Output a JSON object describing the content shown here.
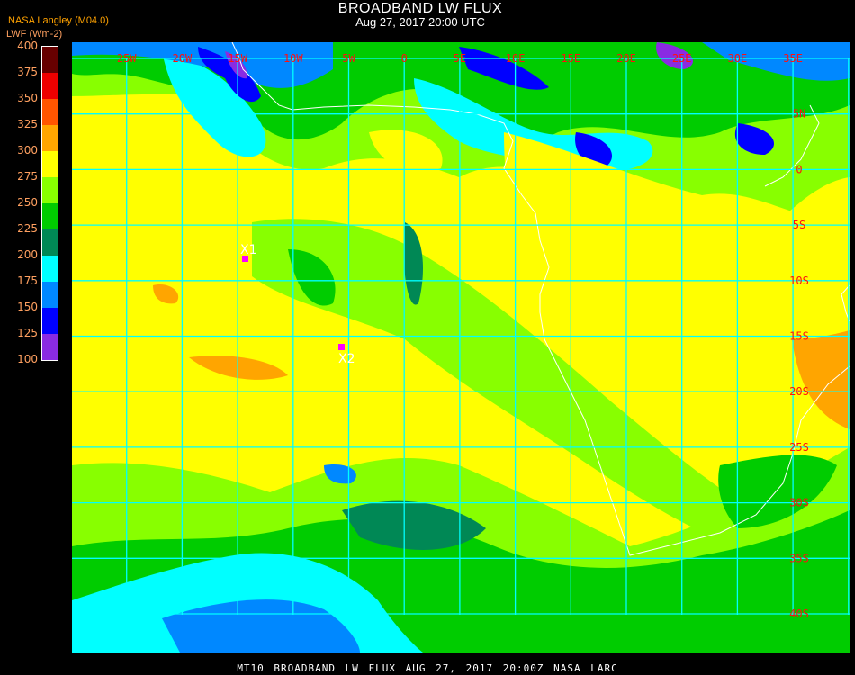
{
  "header": {
    "title": "BROADBAND LW FLUX",
    "subtitle": "Aug 27, 2017 20:00 UTC",
    "org": "NASA Langley (M04.0)",
    "unit": "LWF (Wm-2)"
  },
  "colorbar": {
    "ticks": [
      "400",
      "375",
      "350",
      "325",
      "300",
      "275",
      "250",
      "225",
      "200",
      "175",
      "150",
      "125",
      "100"
    ],
    "colors": [
      "#660000",
      "#ee0000",
      "#ff5500",
      "#ffa500",
      "#ffff00",
      "#88ff00",
      "#00cc00",
      "#008855",
      "#00ffff",
      "#0088ff",
      "#0000ff",
      "#8a2be2"
    ]
  },
  "map": {
    "lon_labels": [
      "25W",
      "20W",
      "15W",
      "10W",
      "5W",
      "0",
      "5E",
      "10E",
      "15E",
      "20E",
      "25E",
      "30E",
      "35E"
    ],
    "lat_labels": [
      "5N",
      "0",
      "5S",
      "10S",
      "15S",
      "20S",
      "25S",
      "30S",
      "35S",
      "40S"
    ],
    "markers": [
      {
        "label": "X1",
        "color": "#ff00ff"
      },
      {
        "label": "X2",
        "color": "#ff00ff"
      }
    ],
    "grid_color": "#00ffff",
    "label_color": "#ff1010",
    "coastline_color": "#ffffff"
  },
  "footer": {
    "text": "MT10  BROADBAND LW FLUX   AUG 27, 2017 20:00Z   NASA LARC"
  }
}
